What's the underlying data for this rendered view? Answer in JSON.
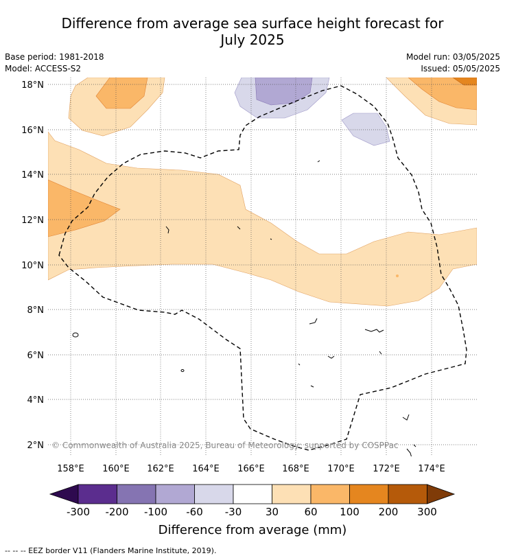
{
  "title_line1": "Difference from average sea surface height forecast for",
  "title_line2": "July 2025",
  "base_period": "Base period: 1981-2018",
  "model": "Model: ACCESS-S2",
  "model_run": "Model run: 03/05/2025",
  "issued": "Issued: 05/05/2025",
  "copyright": "© Commonwealth of Australia 2025, Bureau of Meteorology; supported by COSPPac",
  "lat_labels": [
    "18°N",
    "16°N",
    "14°N",
    "12°N",
    "10°N",
    "8°N",
    "6°N",
    "4°N",
    "2°N"
  ],
  "lon_labels": [
    "158°E",
    "160°E",
    "162°E",
    "164°E",
    "166°E",
    "168°E",
    "170°E",
    "172°E",
    "174°E"
  ],
  "colorbar": {
    "ticks": [
      "-300",
      "-200",
      "-100",
      "-60",
      "-30",
      "30",
      "60",
      "100",
      "200",
      "300"
    ],
    "colors": [
      "#5b2d8e",
      "#8574b2",
      "#b1a8d3",
      "#d8d8ea",
      "#ffffff",
      "#fde0b5",
      "#fab768",
      "#e5861f",
      "#b55a0a"
    ],
    "low_extend_color": "#2e0a4f",
    "high_extend_color": "#7f3b08",
    "label": "Difference from average (mm)"
  },
  "legend_text": "-- -- -- EEZ border V11 (Flanders Marine Institute, 2019)."
}
